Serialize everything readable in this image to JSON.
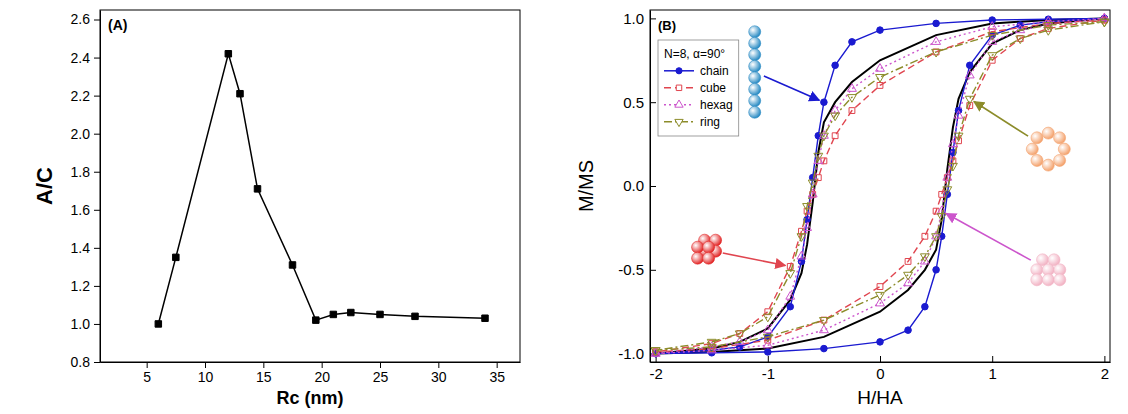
{
  "chart_data": [
    {
      "type": "line",
      "title": "(A)",
      "xlabel": "Rc (nm)",
      "ylabel": "A/C",
      "x": [
        6,
        7.5,
        12,
        13,
        14.5,
        17.5,
        19.5,
        21,
        22.5,
        25,
        28,
        34
      ],
      "xlim": [
        1,
        37
      ],
      "xticks": [
        5,
        10,
        15,
        20,
        25,
        30,
        35
      ],
      "ylim": [
        0.8,
        2.65
      ],
      "yticks": [
        0.8,
        {
          "value": 1,
          "label": "1.0"
        },
        1.2,
        1.4,
        1.6,
        1.8,
        {
          "value": 2,
          "label": "2.0"
        },
        2.2,
        2.4,
        2.6
      ],
      "series": [
        {
          "color": "#000000",
          "marker": "square",
          "line_style": "solid",
          "values": [
            1.0,
            1.35,
            2.42,
            2.21,
            1.71,
            1.31,
            1.02,
            1.05,
            1.06,
            1.05,
            1.04,
            1.03
          ]
        }
      ]
    },
    {
      "type": "line",
      "title": "(B)",
      "xlabel": "H/HA",
      "ylabel": "M/MS",
      "legend_title": "N=8, α=90°",
      "legend": "upper left",
      "x": [
        2,
        1.5,
        1,
        0.5,
        0,
        -0.25,
        -0.4,
        -0.5,
        -0.55,
        -0.6,
        -0.65,
        -0.7,
        -0.8,
        -1,
        -1.25,
        -1.5,
        -2,
        -2,
        -1.5,
        -1,
        -0.5,
        0,
        0.25,
        0.4,
        0.5,
        0.55,
        0.6,
        0.65,
        0.7,
        0.8,
        1,
        1.25,
        1.5,
        2
      ],
      "xlim": [
        -2.05,
        2.05
      ],
      "xticks": [
        -2,
        -1,
        0,
        1,
        2
      ],
      "ylim": [
        -1.05,
        1.05
      ],
      "yticks": [
        {
          "value": -1,
          "label": "-1.0"
        },
        -0.5,
        {
          "value": 0,
          "label": "0.0"
        },
        0.5,
        {
          "value": 1,
          "label": "1.0"
        }
      ],
      "series": [
        {
          "color": "#000000",
          "line_style": "solid",
          "values": [
            1.0,
            0.99,
            0.97,
            0.9,
            0.75,
            0.62,
            0.5,
            0.38,
            0.2,
            -0.1,
            -0.35,
            -0.52,
            -0.68,
            -0.85,
            -0.93,
            -0.97,
            -1.0,
            -1.0,
            -0.99,
            -0.97,
            -0.9,
            -0.75,
            -0.62,
            -0.5,
            -0.38,
            -0.2,
            0.1,
            0.35,
            0.52,
            0.68,
            0.85,
            0.93,
            0.97,
            1.0
          ]
        },
        {
          "name": "chain",
          "color": "#1a1ad0",
          "marker": "circle",
          "line_style": "solid",
          "values": [
            1.0,
            0.995,
            0.99,
            0.97,
            0.93,
            0.86,
            0.72,
            0.5,
            0.3,
            0.05,
            -0.2,
            -0.45,
            -0.72,
            -0.9,
            -0.96,
            -0.98,
            -1.0,
            -1.0,
            -0.995,
            -0.99,
            -0.97,
            -0.93,
            -0.86,
            -0.72,
            -0.5,
            -0.3,
            -0.05,
            0.2,
            0.45,
            0.72,
            0.9,
            0.96,
            0.98,
            1.0
          ]
        },
        {
          "name": "cube",
          "color": "#e0454f",
          "marker": "square-open",
          "line_style": "dash",
          "values": [
            0.99,
            0.97,
            0.92,
            0.8,
            0.6,
            0.45,
            0.3,
            0.15,
            0.05,
            -0.05,
            -0.15,
            -0.27,
            -0.48,
            -0.75,
            -0.88,
            -0.94,
            -0.99,
            -0.99,
            -0.97,
            -0.92,
            -0.8,
            -0.6,
            -0.45,
            -0.3,
            -0.15,
            -0.05,
            0.05,
            0.15,
            0.27,
            0.48,
            0.75,
            0.88,
            0.94,
            0.99
          ]
        },
        {
          "name": "hexag",
          "color": "#cc55cc",
          "marker": "triangle-up-open",
          "line_style": "dot",
          "values": [
            1.0,
            0.98,
            0.95,
            0.86,
            0.7,
            0.58,
            0.45,
            0.3,
            0.15,
            -0.05,
            -0.25,
            -0.42,
            -0.66,
            -0.86,
            -0.93,
            -0.96,
            -1.0,
            -1.0,
            -0.98,
            -0.95,
            -0.86,
            -0.7,
            -0.58,
            -0.45,
            -0.3,
            -0.15,
            0.05,
            0.25,
            0.42,
            0.66,
            0.86,
            0.93,
            0.96,
            1.0
          ]
        },
        {
          "name": "ring",
          "color": "#8c8c2a",
          "marker": "triangle-down-open",
          "line_style": "dashdot",
          "values": [
            0.98,
            0.96,
            0.9,
            0.8,
            0.65,
            0.53,
            0.42,
            0.3,
            0.18,
            0.02,
            -0.12,
            -0.3,
            -0.52,
            -0.78,
            -0.88,
            -0.93,
            -0.98,
            -0.98,
            -0.96,
            -0.9,
            -0.8,
            -0.65,
            -0.53,
            -0.42,
            -0.3,
            -0.18,
            -0.02,
            0.12,
            0.3,
            0.52,
            0.78,
            0.88,
            0.93,
            0.98
          ]
        }
      ]
    }
  ]
}
